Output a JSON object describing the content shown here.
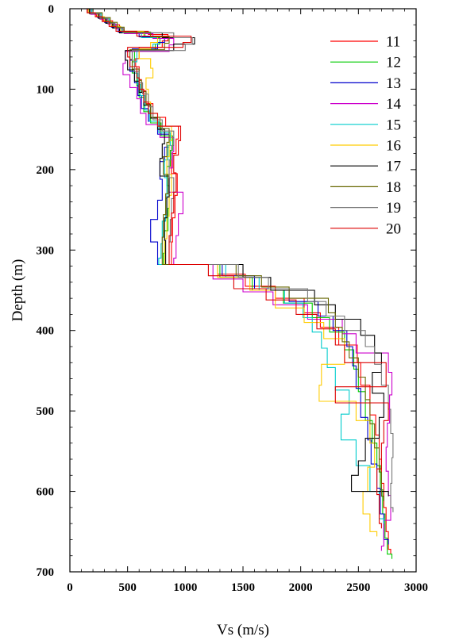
{
  "chart_data": {
    "type": "line",
    "xlabel": "Vs (m/s)",
    "ylabel": "Depth (m)",
    "xlim": [
      0,
      3000
    ],
    "ylim": [
      0,
      700
    ],
    "y_inverted": true,
    "x_ticks": [
      "0",
      "500",
      "1000",
      "1500",
      "2000",
      "2500",
      "3000"
    ],
    "y_ticks": [
      "0",
      "100",
      "200",
      "300",
      "400",
      "500",
      "600",
      "700"
    ],
    "grid": false,
    "legend_position": "top-right",
    "step_profile": true,
    "series": [
      {
        "name": "11",
        "color": "#ff0000",
        "depth": [
          0,
          5,
          10,
          15,
          20,
          28,
          32,
          40,
          48,
          62,
          72,
          88,
          102,
          118,
          135,
          146,
          162,
          180,
          205,
          232,
          260,
          290,
          318,
          330,
          345,
          360,
          378,
          396,
          418,
          440,
          468,
          505,
          530,
          560,
          590,
          620,
          650,
          672
        ],
        "vs": [
          150,
          230,
          290,
          370,
          430,
          680,
          850,
          800,
          600,
          570,
          600,
          620,
          660,
          720,
          830,
          940,
          920,
          880,
          930,
          910,
          890,
          880,
          1280,
          1520,
          1780,
          2030,
          2170,
          2330,
          2490,
          2520,
          2600,
          2650,
          2680,
          2700,
          2720,
          2740,
          2760,
          2780
        ]
      },
      {
        "name": "12",
        "color": "#00cc00",
        "depth": [
          0,
          6,
          12,
          18,
          24,
          30,
          36,
          44,
          52,
          66,
          80,
          96,
          110,
          128,
          142,
          158,
          176,
          196,
          220,
          248,
          276,
          304,
          318,
          334,
          350,
          366,
          384,
          402,
          424,
          448,
          476,
          512,
          540,
          568,
          598,
          628,
          658,
          678
        ],
        "vs": [
          170,
          250,
          320,
          380,
          460,
          650,
          780,
          740,
          560,
          540,
          580,
          600,
          640,
          700,
          790,
          890,
          870,
          840,
          860,
          850,
          820,
          810,
          1300,
          1580,
          1850,
          2100,
          2250,
          2380,
          2460,
          2500,
          2560,
          2620,
          2660,
          2690,
          2710,
          2730,
          2750,
          2790
        ]
      },
      {
        "name": "13",
        "color": "#0000cc",
        "depth": [
          0,
          5,
          11,
          17,
          23,
          29,
          35,
          42,
          50,
          64,
          78,
          92,
          108,
          124,
          140,
          156,
          172,
          190,
          212,
          238,
          262,
          290,
          318,
          332,
          348,
          364,
          382,
          400,
          420,
          444,
          472,
          508,
          536,
          566,
          596,
          628,
          660
        ],
        "vs": [
          160,
          240,
          300,
          360,
          420,
          600,
          820,
          760,
          540,
          520,
          560,
          590,
          620,
          680,
          760,
          860,
          820,
          780,
          800,
          760,
          700,
          760,
          1320,
          1600,
          1900,
          2150,
          2280,
          2400,
          2450,
          2480,
          2520,
          2580,
          2610,
          2660,
          2690,
          2720,
          2760
        ]
      },
      {
        "name": "14",
        "color": "#cc00cc",
        "depth": [
          0,
          7,
          13,
          19,
          25,
          31,
          37,
          45,
          53,
          68,
          82,
          98,
          112,
          130,
          144,
          160,
          178,
          198,
          228,
          255,
          282,
          310,
          318,
          336,
          352,
          368,
          386,
          404,
          428,
          452,
          480,
          515,
          545,
          575,
          605,
          636,
          668
        ],
        "vs": [
          180,
          260,
          330,
          400,
          470,
          720,
          900,
          860,
          480,
          460,
          520,
          580,
          610,
          660,
          780,
          900,
          890,
          860,
          980,
          940,
          920,
          900,
          1240,
          1500,
          1760,
          2060,
          2360,
          2480,
          2760,
          2790,
          2770,
          2750,
          2740,
          2760,
          2780,
          2720,
          2700
        ]
      },
      {
        "name": "15",
        "color": "#00cccc",
        "depth": [
          0,
          6,
          12,
          18,
          24,
          30,
          36,
          44,
          52,
          66,
          80,
          94,
          108,
          126,
          140,
          154,
          170,
          188,
          210,
          236,
          264,
          292,
          310,
          318,
          334,
          350,
          366,
          384,
          402,
          422,
          446,
          474,
          504,
          536,
          568,
          600,
          634
        ],
        "vs": [
          190,
          270,
          340,
          390,
          450,
          620,
          760,
          720,
          580,
          560,
          590,
          610,
          650,
          690,
          770,
          870,
          850,
          820,
          840,
          830,
          800,
          790,
          770,
          1350,
          1640,
          1860,
          2020,
          2100,
          2180,
          2230,
          2300,
          2420,
          2350,
          2480,
          2600,
          2680,
          2720
        ]
      },
      {
        "name": "16",
        "color": "#ffcc00",
        "depth": [
          0,
          5,
          10,
          16,
          22,
          28,
          34,
          42,
          50,
          62,
          74,
          86,
          100,
          116,
          130,
          146,
          164,
          184,
          206,
          232,
          258,
          286,
          318,
          334,
          350,
          372,
          390,
          410,
          442,
          468,
          488,
          512,
          540,
          570,
          600,
          628,
          650
        ],
        "vs": [
          160,
          240,
          300,
          360,
          440,
          640,
          760,
          700,
          600,
          700,
          720,
          660,
          680,
          700,
          760,
          880,
          860,
          840,
          880,
          860,
          840,
          820,
          1280,
          1560,
          1780,
          2030,
          2200,
          2380,
          2180,
          2160,
          2480,
          2600,
          2640,
          2580,
          2540,
          2600,
          2660
        ]
      },
      {
        "name": "17",
        "color": "#000000",
        "depth": [
          0,
          6,
          12,
          18,
          24,
          30,
          36,
          44,
          52,
          64,
          76,
          90,
          104,
          120,
          136,
          150,
          168,
          186,
          208,
          234,
          260,
          288,
          318,
          334,
          350,
          368,
          386,
          406,
          428,
          452,
          478,
          508,
          534,
          562,
          580,
          600
        ],
        "vs": [
          170,
          250,
          310,
          370,
          430,
          800,
          1080,
          900,
          480,
          500,
          560,
          600,
          640,
          700,
          760,
          820,
          800,
          780,
          860,
          840,
          820,
          830,
          1500,
          1740,
          2120,
          2300,
          2520,
          2640,
          2700,
          2620,
          2720,
          2680,
          2560,
          2500,
          2440,
          2760
        ]
      },
      {
        "name": "18",
        "color": "#666600",
        "depth": [
          0,
          5,
          11,
          17,
          23,
          29,
          35,
          43,
          51,
          63,
          75,
          89,
          103,
          119,
          135,
          149,
          166,
          184,
          206,
          230,
          256,
          284,
          318,
          332,
          346,
          360,
          378,
          396,
          414,
          434,
          458,
          486,
          516,
          546,
          576,
          606
        ],
        "vs": [
          200,
          280,
          350,
          410,
          470,
          700,
          860,
          820,
          520,
          540,
          600,
          620,
          660,
          700,
          780,
          860,
          840,
          810,
          850,
          830,
          810,
          800,
          1440,
          1660,
          1900,
          2240,
          2300,
          2360,
          2420,
          2500,
          2560,
          2600,
          2640,
          2680,
          2700,
          2720
        ]
      },
      {
        "name": "19",
        "color": "#777777",
        "depth": [
          0,
          6,
          12,
          18,
          24,
          30,
          36,
          44,
          52,
          64,
          78,
          92,
          106,
          122,
          138,
          152,
          170,
          188,
          210,
          236,
          262,
          290,
          318,
          334,
          348,
          364,
          382,
          400,
          420,
          442,
          468,
          498,
          528,
          558,
          590,
          620
        ],
        "vs": [
          180,
          260,
          330,
          390,
          460,
          900,
          1060,
          1000,
          540,
          560,
          600,
          630,
          680,
          720,
          800,
          900,
          880,
          860,
          900,
          880,
          870,
          860,
          1460,
          1720,
          2060,
          2220,
          2380,
          2560,
          2640,
          2700,
          2760,
          2780,
          2800,
          2790,
          2780,
          2800
        ]
      },
      {
        "name": "20",
        "color": "#dd0000",
        "depth": [
          0,
          5,
          10,
          16,
          22,
          28,
          34,
          42,
          48,
          60,
          72,
          86,
          100,
          116,
          130,
          146,
          164,
          182,
          204,
          228,
          254,
          282,
          318,
          332,
          348,
          362,
          380,
          398,
          418,
          440,
          470,
          490,
          512,
          540,
          572,
          604,
          640
        ],
        "vs": [
          150,
          220,
          280,
          340,
          400,
          580,
          1050,
          980,
          500,
          520,
          580,
          600,
          640,
          680,
          760,
          960,
          940,
          900,
          920,
          900,
          880,
          860,
          1200,
          1420,
          1700,
          1960,
          2140,
          2300,
          2380,
          2740,
          2300,
          2760,
          2720,
          2700,
          2660,
          2680,
          2700
        ]
      }
    ]
  }
}
